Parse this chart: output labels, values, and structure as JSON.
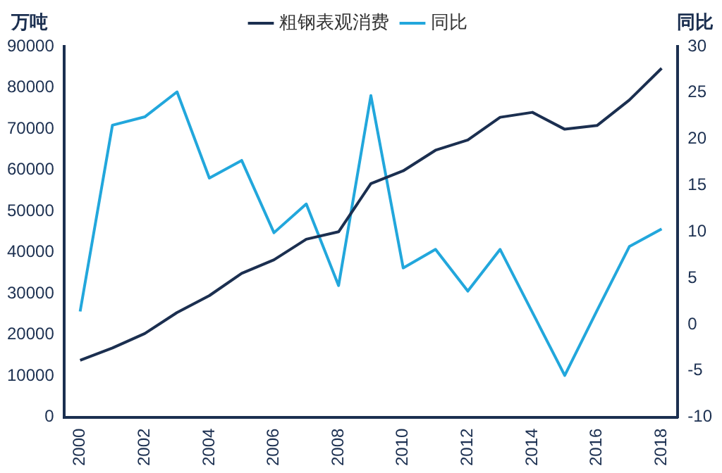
{
  "chart_data": {
    "type": "line",
    "ylabel": "万吨",
    "y2label": "同比",
    "x": [
      2000,
      2001,
      2002,
      2003,
      2004,
      2005,
      2006,
      2007,
      2008,
      2009,
      2010,
      2011,
      2012,
      2013,
      2014,
      2015,
      2016,
      2017,
      2018
    ],
    "series": [
      {
        "name": "粗钢表观消费",
        "color": "#1b2f50",
        "values": [
          13800,
          16800,
          20300,
          25400,
          29500,
          34900,
          38200,
          43200,
          45000,
          56700,
          59800,
          64800,
          67300,
          72800,
          74000,
          69900,
          70800,
          77000,
          84700
        ]
      },
      {
        "name": "同比",
        "color": "#22a7dc",
        "axis": "y2",
        "values": [
          1.4,
          21.5,
          22.4,
          25.1,
          15.8,
          17.7,
          9.9,
          13.0,
          4.2,
          24.7,
          6.1,
          8.1,
          3.6,
          8.1,
          1.3,
          -5.5,
          1.5,
          8.4,
          10.3
        ]
      }
    ],
    "xlim": [
      1999.5,
      2018.5
    ],
    "xticks": [
      2000,
      2002,
      2004,
      2006,
      2008,
      2010,
      2012,
      2014,
      2016,
      2018
    ],
    "ylim": [
      0,
      90000
    ],
    "yticks": [
      0,
      10000,
      20000,
      30000,
      40000,
      50000,
      60000,
      70000,
      80000,
      90000
    ],
    "y2lim": [
      -10,
      30
    ],
    "y2ticks": [
      -10,
      -5,
      0,
      5,
      10,
      15,
      20,
      25,
      30
    ],
    "grid": false,
    "legend": "top",
    "marker": "none",
    "line_style": "solid"
  }
}
